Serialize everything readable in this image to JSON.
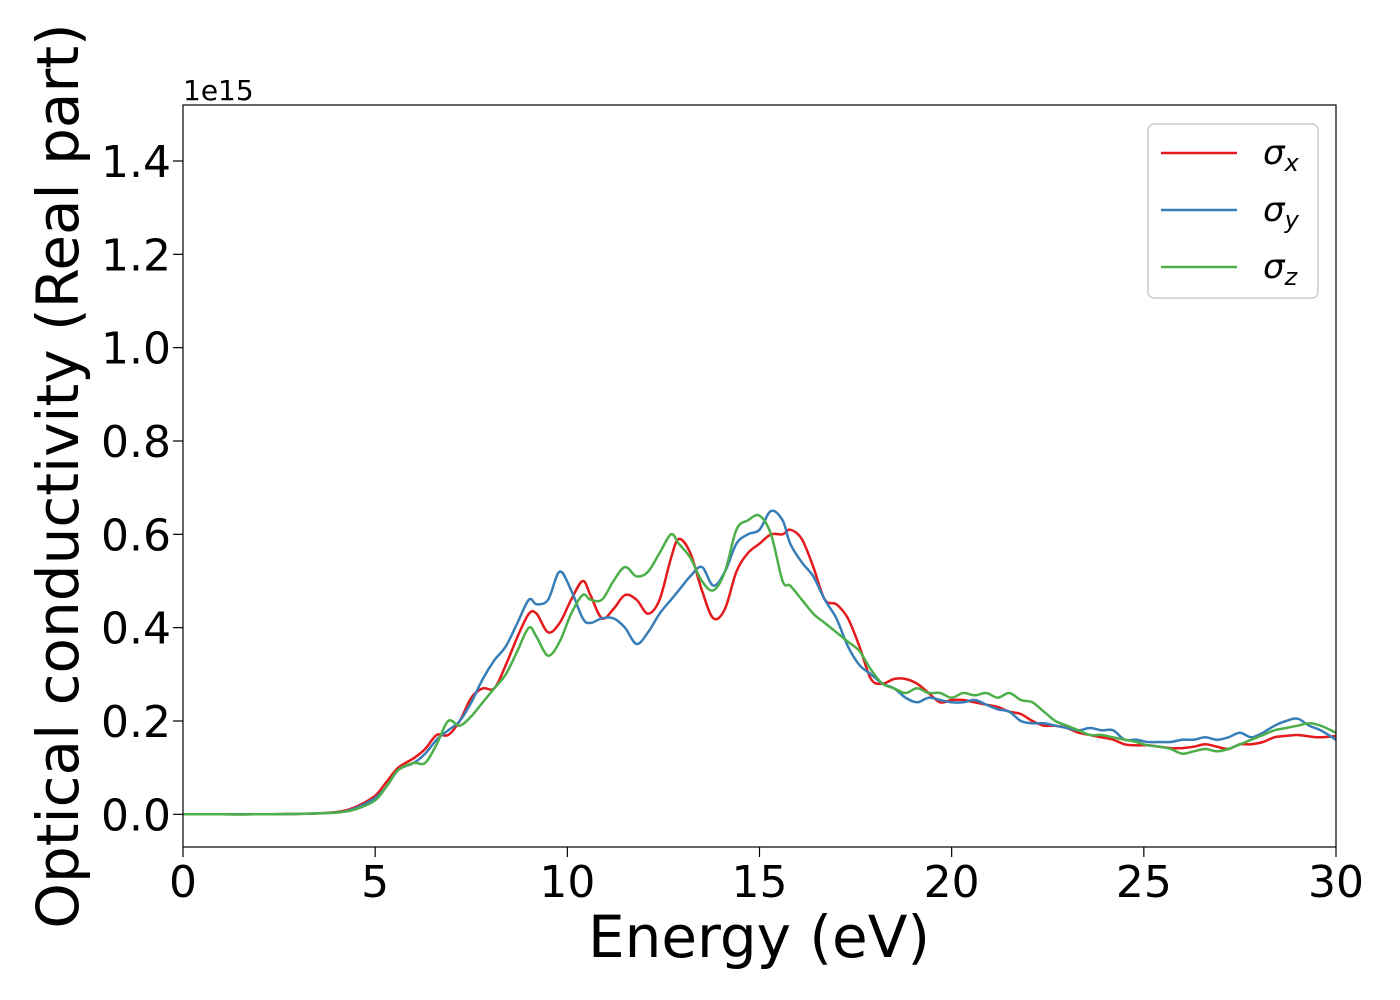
{
  "chart_data": {
    "type": "line",
    "xlabel": "Energy (eV)",
    "ylabel": "Optical conductivity (Real part)",
    "y_offset_label": "1e15",
    "xlim": [
      0,
      30
    ],
    "ylim": [
      -0.07,
      1.52
    ],
    "x_ticks": [
      0,
      5,
      10,
      15,
      20,
      25,
      30
    ],
    "x_tick_labels": [
      "0",
      "5",
      "10",
      "15",
      "20",
      "25",
      "30"
    ],
    "y_ticks": [
      0.0,
      0.2,
      0.4,
      0.6,
      0.8,
      1.0,
      1.2,
      1.4
    ],
    "y_tick_labels": [
      "0.0",
      "0.2",
      "0.4",
      "0.6",
      "0.8",
      "1.0",
      "1.2",
      "1.4"
    ],
    "grid": false,
    "legend_position": "top-right",
    "series": [
      {
        "name": "σx",
        "symbol": "σ",
        "subscript": "x",
        "color": "#e41a1c",
        "x": [
          0,
          1,
          2,
          3,
          3.5,
          4,
          4.3,
          4.6,
          5,
          5.3,
          5.6,
          6,
          6.3,
          6.6,
          6.9,
          7.2,
          7.5,
          7.8,
          8.1,
          8.4,
          8.7,
          9,
          9.2,
          9.5,
          9.8,
          10.1,
          10.4,
          10.6,
          10.9,
          11.2,
          11.5,
          11.8,
          12.1,
          12.4,
          12.7,
          12.9,
          13.2,
          13.5,
          13.8,
          14.1,
          14.4,
          14.7,
          15,
          15.3,
          15.6,
          15.8,
          16.1,
          16.4,
          16.7,
          17,
          17.3,
          17.6,
          17.9,
          18.2,
          18.5,
          18.8,
          19.1,
          19.4,
          19.7,
          20,
          20.3,
          20.6,
          20.9,
          21.2,
          21.5,
          21.8,
          22.1,
          22.4,
          22.7,
          23,
          23.3,
          23.6,
          23.9,
          24.2,
          24.5,
          24.8,
          25.1,
          25.4,
          25.7,
          26,
          26.3,
          26.6,
          26.9,
          27.2,
          27.5,
          27.8,
          28.1,
          28.4,
          28.7,
          29,
          29.3,
          29.6,
          30
        ],
        "y": [
          0,
          0,
          0,
          0.001,
          0.002,
          0.005,
          0.01,
          0.02,
          0.04,
          0.07,
          0.1,
          0.12,
          0.14,
          0.17,
          0.17,
          0.2,
          0.25,
          0.27,
          0.27,
          0.32,
          0.38,
          0.43,
          0.43,
          0.39,
          0.41,
          0.46,
          0.5,
          0.47,
          0.42,
          0.44,
          0.47,
          0.46,
          0.43,
          0.46,
          0.55,
          0.59,
          0.56,
          0.48,
          0.42,
          0.44,
          0.52,
          0.56,
          0.58,
          0.6,
          0.6,
          0.61,
          0.59,
          0.53,
          0.46,
          0.45,
          0.42,
          0.36,
          0.29,
          0.28,
          0.29,
          0.29,
          0.28,
          0.26,
          0.24,
          0.245,
          0.245,
          0.24,
          0.235,
          0.23,
          0.22,
          0.215,
          0.2,
          0.19,
          0.19,
          0.185,
          0.175,
          0.17,
          0.165,
          0.16,
          0.15,
          0.148,
          0.148,
          0.145,
          0.142,
          0.142,
          0.145,
          0.15,
          0.145,
          0.14,
          0.15,
          0.15,
          0.155,
          0.165,
          0.168,
          0.17,
          0.167,
          0.165,
          0.168
        ]
      },
      {
        "name": "σy",
        "symbol": "σ",
        "subscript": "y",
        "color": "#377eb8",
        "x": [
          0,
          1,
          2,
          3,
          3.5,
          4,
          4.3,
          4.6,
          5,
          5.3,
          5.6,
          6,
          6.3,
          6.6,
          6.9,
          7.2,
          7.5,
          7.8,
          8.1,
          8.4,
          8.7,
          9,
          9.2,
          9.5,
          9.8,
          10.1,
          10.4,
          10.6,
          10.9,
          11.2,
          11.5,
          11.8,
          12.1,
          12.4,
          12.7,
          12.9,
          13.2,
          13.5,
          13.8,
          14.1,
          14.4,
          14.7,
          15,
          15.3,
          15.6,
          15.8,
          16.1,
          16.4,
          16.7,
          17,
          17.3,
          17.6,
          17.9,
          18.2,
          18.5,
          18.8,
          19.1,
          19.4,
          19.7,
          20,
          20.3,
          20.6,
          20.9,
          21.2,
          21.5,
          21.8,
          22.1,
          22.4,
          22.7,
          23,
          23.3,
          23.6,
          23.9,
          24.2,
          24.5,
          24.8,
          25.1,
          25.4,
          25.7,
          26,
          26.3,
          26.6,
          26.9,
          27.2,
          27.5,
          27.8,
          28.1,
          28.4,
          28.7,
          29,
          29.3,
          29.6,
          30
        ],
        "y": [
          0,
          0,
          0,
          0.001,
          0.002,
          0.004,
          0.008,
          0.017,
          0.035,
          0.06,
          0.095,
          0.11,
          0.13,
          0.16,
          0.18,
          0.2,
          0.24,
          0.29,
          0.33,
          0.36,
          0.41,
          0.46,
          0.45,
          0.46,
          0.52,
          0.48,
          0.42,
          0.41,
          0.42,
          0.42,
          0.4,
          0.365,
          0.39,
          0.43,
          0.46,
          0.48,
          0.51,
          0.53,
          0.49,
          0.52,
          0.58,
          0.6,
          0.61,
          0.65,
          0.63,
          0.58,
          0.54,
          0.51,
          0.46,
          0.42,
          0.36,
          0.32,
          0.3,
          0.28,
          0.27,
          0.25,
          0.24,
          0.25,
          0.245,
          0.24,
          0.24,
          0.245,
          0.235,
          0.225,
          0.22,
          0.2,
          0.195,
          0.195,
          0.19,
          0.185,
          0.18,
          0.185,
          0.18,
          0.18,
          0.16,
          0.16,
          0.155,
          0.155,
          0.155,
          0.16,
          0.16,
          0.165,
          0.16,
          0.165,
          0.175,
          0.165,
          0.175,
          0.19,
          0.2,
          0.205,
          0.19,
          0.18,
          0.16
        ]
      },
      {
        "name": "σz",
        "symbol": "σ",
        "subscript": "z",
        "color": "#4daf4a",
        "x": [
          0,
          1,
          2,
          3,
          3.5,
          4,
          4.3,
          4.6,
          5,
          5.3,
          5.6,
          6,
          6.3,
          6.6,
          6.9,
          7.2,
          7.5,
          7.8,
          8.1,
          8.4,
          8.7,
          9,
          9.2,
          9.5,
          9.8,
          10.1,
          10.4,
          10.6,
          10.9,
          11.2,
          11.5,
          11.8,
          12.1,
          12.4,
          12.7,
          12.9,
          13.2,
          13.5,
          13.8,
          14.1,
          14.4,
          14.7,
          15,
          15.3,
          15.6,
          15.8,
          16.1,
          16.4,
          16.7,
          17,
          17.3,
          17.6,
          17.9,
          18.2,
          18.5,
          18.8,
          19.1,
          19.4,
          19.7,
          20,
          20.3,
          20.6,
          20.9,
          21.2,
          21.5,
          21.8,
          22.1,
          22.4,
          22.7,
          23,
          23.3,
          23.6,
          23.9,
          24.2,
          24.5,
          24.8,
          25.1,
          25.4,
          25.7,
          26,
          26.3,
          26.6,
          26.9,
          27.2,
          27.5,
          27.8,
          28.1,
          28.4,
          28.7,
          29,
          29.3,
          29.6,
          30
        ],
        "y": [
          0,
          0,
          0,
          0.001,
          0.002,
          0.004,
          0.007,
          0.014,
          0.03,
          0.06,
          0.095,
          0.11,
          0.11,
          0.15,
          0.2,
          0.19,
          0.21,
          0.24,
          0.27,
          0.3,
          0.35,
          0.4,
          0.38,
          0.34,
          0.37,
          0.43,
          0.47,
          0.46,
          0.46,
          0.5,
          0.53,
          0.51,
          0.52,
          0.56,
          0.6,
          0.58,
          0.55,
          0.5,
          0.48,
          0.52,
          0.61,
          0.63,
          0.64,
          0.6,
          0.5,
          0.49,
          0.46,
          0.43,
          0.41,
          0.39,
          0.37,
          0.35,
          0.31,
          0.28,
          0.27,
          0.26,
          0.27,
          0.26,
          0.26,
          0.25,
          0.26,
          0.255,
          0.26,
          0.25,
          0.26,
          0.245,
          0.24,
          0.22,
          0.2,
          0.19,
          0.18,
          0.17,
          0.17,
          0.165,
          0.16,
          0.155,
          0.148,
          0.145,
          0.14,
          0.13,
          0.135,
          0.14,
          0.135,
          0.14,
          0.15,
          0.16,
          0.17,
          0.18,
          0.185,
          0.19,
          0.195,
          0.19,
          0.175
        ]
      }
    ]
  }
}
